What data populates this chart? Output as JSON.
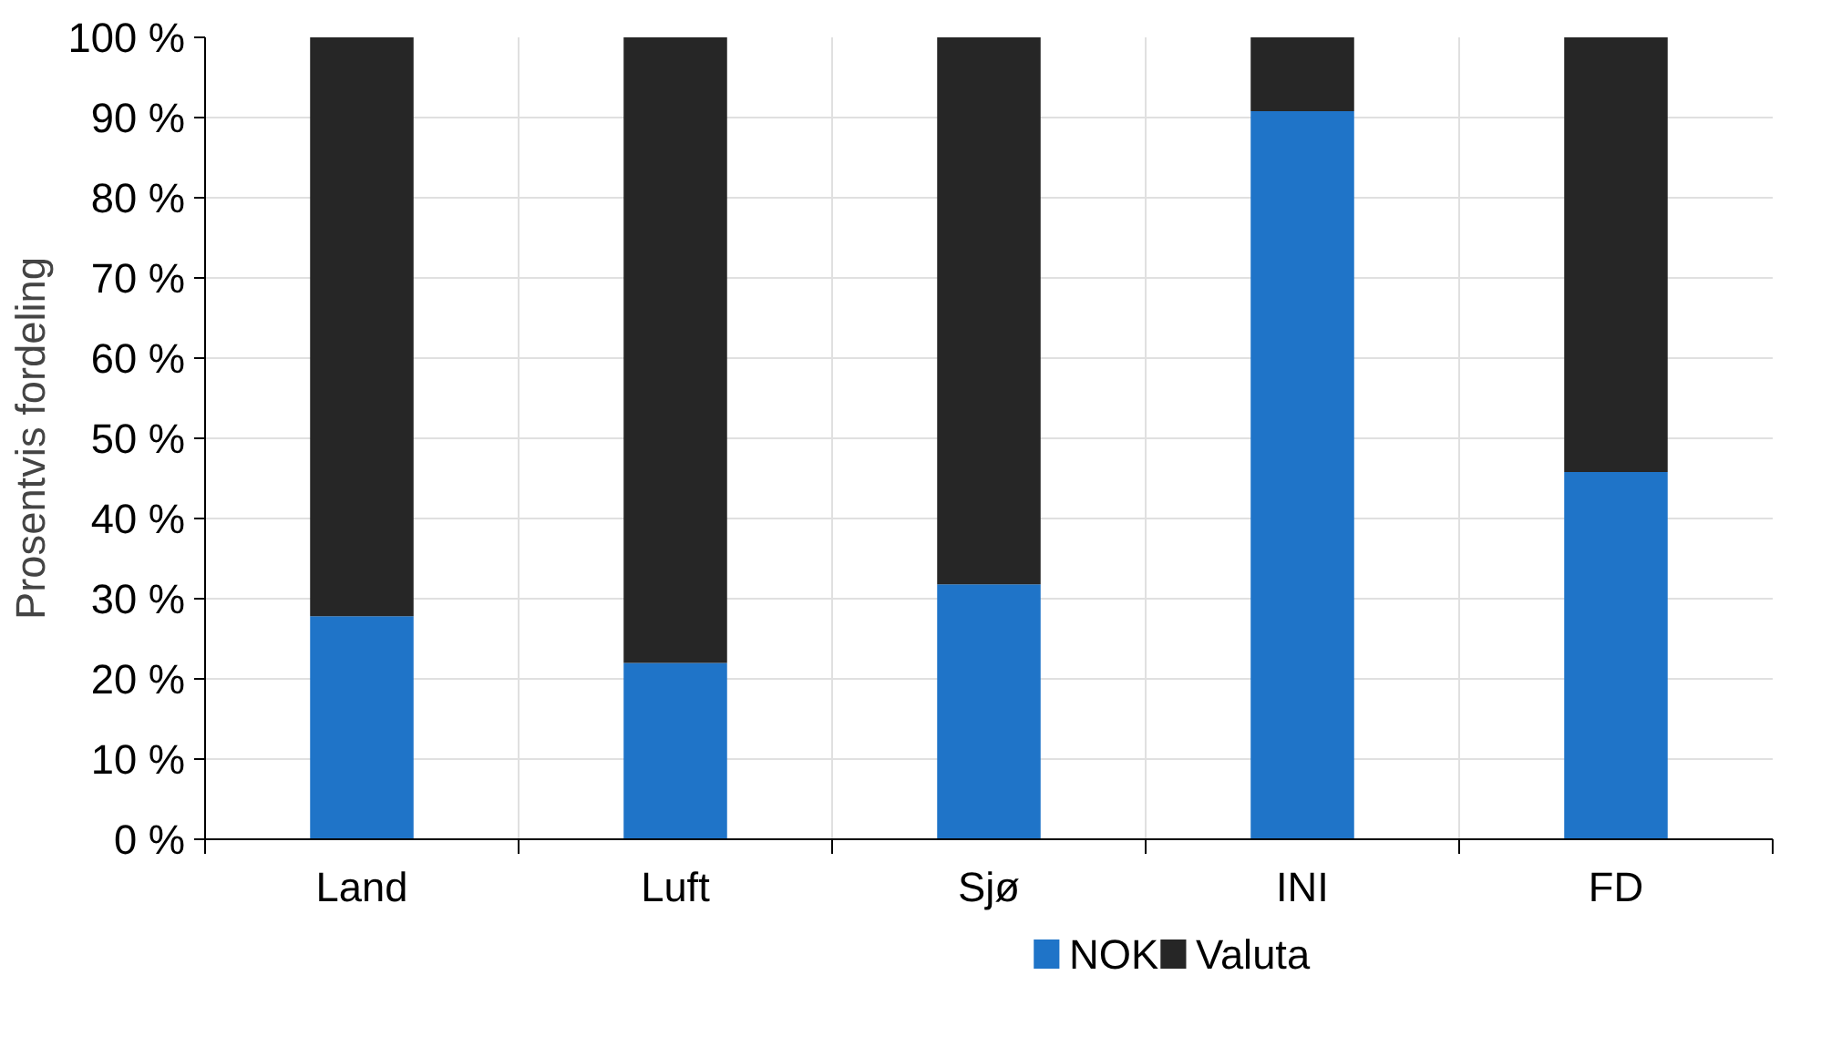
{
  "chart_data": {
    "type": "bar",
    "stacked": true,
    "ylabel": "Prosentvis fordeling",
    "categories": [
      "Land",
      "Luft",
      "Sjø",
      "INI",
      "FD"
    ],
    "series": [
      {
        "name": "NOK",
        "color": "#1f74c8",
        "values": [
          27.8,
          22,
          31.8,
          90.8,
          45.8
        ]
      },
      {
        "name": "Valuta",
        "color": "#262626",
        "values": [
          72.2,
          78,
          68.2,
          9.2,
          54.2
        ]
      }
    ],
    "ylim": [
      0,
      100
    ],
    "yticks": [
      {
        "value": 0,
        "label": "0 %"
      },
      {
        "value": 10,
        "label": "10 %"
      },
      {
        "value": 20,
        "label": "20 %"
      },
      {
        "value": 30,
        "label": "30 %"
      },
      {
        "value": 40,
        "label": "40 %"
      },
      {
        "value": 50,
        "label": "50 %"
      },
      {
        "value": 60,
        "label": "60 %"
      },
      {
        "value": 70,
        "label": "70 %"
      },
      {
        "value": 80,
        "label": "80 %"
      },
      {
        "value": 90,
        "label": "90 %"
      },
      {
        "value": 100,
        "label": "100 %"
      }
    ],
    "grid": true,
    "legend": "bottom"
  }
}
